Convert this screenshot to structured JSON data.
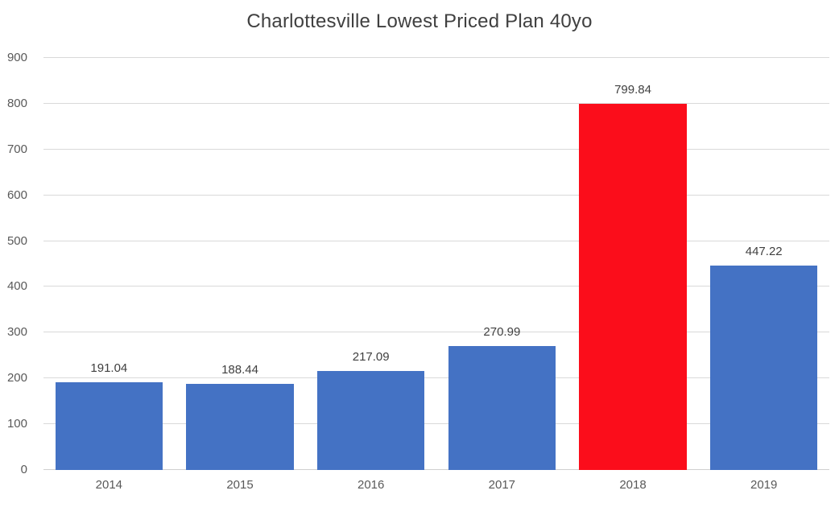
{
  "chart_data": {
    "type": "bar",
    "title": "Charlottesville Lowest Priced Plan 40yo",
    "categories": [
      "2014",
      "2015",
      "2016",
      "2017",
      "2018",
      "2019"
    ],
    "values": [
      191.04,
      188.44,
      217.09,
      270.99,
      799.84,
      447.22
    ],
    "value_labels": [
      "191.04",
      "188.44",
      "217.09",
      "270.99",
      "799.84",
      "447.22"
    ],
    "bar_colors": [
      "#4472C4",
      "#4472C4",
      "#4472C4",
      "#4472C4",
      "#FB0D1B",
      "#4472C4"
    ],
    "highlighted_category": "2018",
    "xlabel": "",
    "ylabel": "",
    "ylim": [
      0,
      900
    ],
    "yticks": [
      0,
      100,
      200,
      300,
      400,
      500,
      600,
      700,
      800,
      900
    ],
    "grid": true,
    "legend_position": "none",
    "colors": {
      "default_bar": "#4472C4",
      "highlight_bar": "#FB0D1B",
      "gridline": "#D9D9D9",
      "axis_text": "#595959",
      "data_label_text": "#404040",
      "title_text": "#404040",
      "background": "#FFFFFF"
    }
  }
}
